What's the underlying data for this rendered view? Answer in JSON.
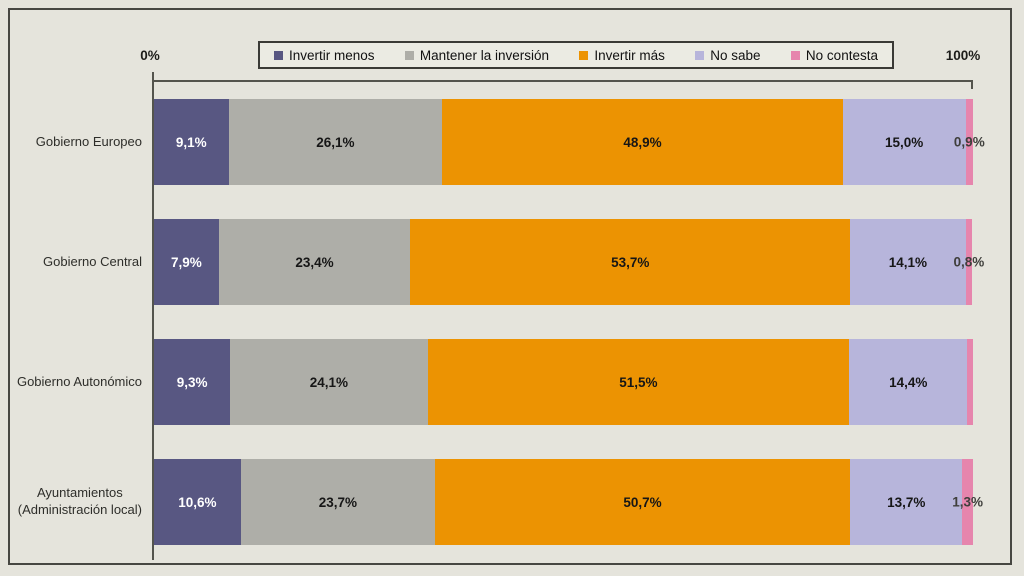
{
  "page": {
    "background_color": "#e5e4dc",
    "frame_border_color": "#474742",
    "legend_background_color": "#ebebe3"
  },
  "chart_data": {
    "type": "bar",
    "variant": "horizontal-stacked-100",
    "title": "",
    "xlabel": "",
    "ylabel": "",
    "xlim": [
      0,
      100
    ],
    "grid": false,
    "legend_position": "top",
    "axis_labels": {
      "left": "0%",
      "right": "100%"
    },
    "categories": [
      [
        "Gobierno Europeo"
      ],
      [
        "Gobierno Central"
      ],
      [
        "Gobierno Autonómico"
      ],
      [
        "Ayuntamientos",
        "(Administración local)"
      ]
    ],
    "series": [
      {
        "name": "Invertir menos",
        "color": "#585782",
        "label_style": "light",
        "values": [
          9.1,
          7.9,
          9.3,
          10.6
        ]
      },
      {
        "name": "Mantener la inversión",
        "color": "#aeaea8",
        "label_style": "dark",
        "values": [
          26.1,
          23.4,
          24.1,
          23.7
        ]
      },
      {
        "name": "Invertir más",
        "color": "#ec9302",
        "label_style": "dark",
        "values": [
          48.9,
          53.7,
          51.5,
          50.7
        ]
      },
      {
        "name": "No sabe",
        "color": "#b7b5db",
        "label_style": "dark",
        "values": [
          15.0,
          14.1,
          14.4,
          13.7
        ]
      },
      {
        "name": "No contesta",
        "color": "#e685ad",
        "label_style": "outside",
        "values": [
          0.9,
          0.8,
          0.7,
          1.3
        ]
      }
    ],
    "value_labels": [
      [
        "9,1%",
        "26,1%",
        "48,9%",
        "15,0%",
        "0,9%"
      ],
      [
        "7,9%",
        "23,4%",
        "53,7%",
        "14,1%",
        "0,8%"
      ],
      [
        "9,3%",
        "24,1%",
        "51,5%",
        "14,4%",
        ""
      ],
      [
        "10,6%",
        "23,7%",
        "50,7%",
        "13,7%",
        "1,3%"
      ]
    ]
  }
}
